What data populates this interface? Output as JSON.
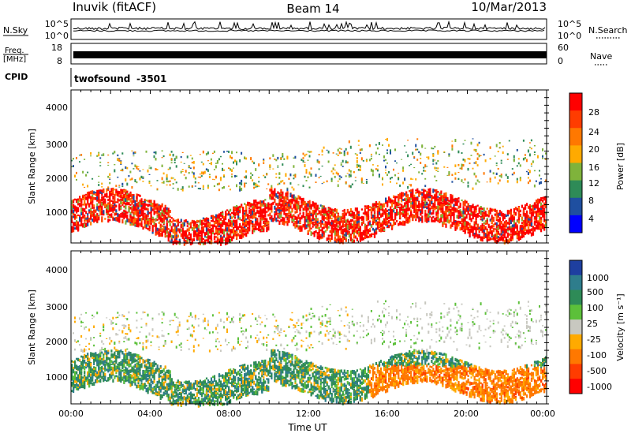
{
  "header": {
    "station": "Inuvik (fitACF)",
    "beam": "Beam 14",
    "date": "10/Mar/2013"
  },
  "chart_data": [
    {
      "type": "line",
      "panel": "noise",
      "ylabel": "N.Sky",
      "right_label": "N.Search",
      "left_ticks": [
        "10^5",
        "10^0"
      ],
      "right_ticks": [
        "10^5",
        "10^0"
      ]
    },
    {
      "type": "line",
      "panel": "frequency",
      "ylabel_line1": "Freq.",
      "ylabel_line2": "[MHz]",
      "right_label": "Nave",
      "left_ticks": [
        "18",
        "8"
      ],
      "right_ticks": [
        "60",
        "0"
      ],
      "ylim": [
        8,
        18
      ],
      "right_ylim": [
        0,
        60
      ]
    },
    {
      "type": "table",
      "panel": "cpid",
      "label": "CPID",
      "program": "twofsound",
      "id": "-3501"
    },
    {
      "type": "heatmap",
      "panel": "power",
      "ylabel": "Slant Range [km]",
      "yticks": [
        "1000",
        "2000",
        "3000",
        "4000"
      ],
      "ylim": [
        180,
        4500
      ],
      "xlim": [
        0,
        24
      ],
      "colorbar_label": "Power [dB]",
      "colorbar_ticks": [
        "28",
        "24",
        "20",
        "16",
        "12",
        "8",
        "4"
      ],
      "colorbar_colors": [
        "#ff0000",
        "#ff3c00",
        "#ff7800",
        "#ffaa00",
        "#7fb33b",
        "#2e8b57",
        "#1f4fa0",
        "#0000ff"
      ]
    },
    {
      "type": "heatmap",
      "panel": "velocity",
      "ylabel": "Slant Range [km]",
      "yticks": [
        "1000",
        "2000",
        "3000",
        "4000"
      ],
      "ylim": [
        180,
        4500
      ],
      "xlim": [
        0,
        24
      ],
      "xlabel": "Time UT",
      "xticks": [
        "00:00",
        "04:00",
        "08:00",
        "12:00",
        "16:00",
        "20:00",
        "00:00"
      ],
      "colorbar_label": "Velocity [m s⁻¹]",
      "colorbar_ticks": [
        "1000",
        "500",
        "100",
        "25",
        "-25",
        "-100",
        "-500",
        "-1000"
      ],
      "colorbar_colors": [
        "#1e3fa0",
        "#2e7d8c",
        "#2e8b57",
        "#5cc03a",
        "#c8c8c0",
        "#ffaa00",
        "#ff7800",
        "#ff3c00",
        "#ff0000"
      ]
    }
  ]
}
